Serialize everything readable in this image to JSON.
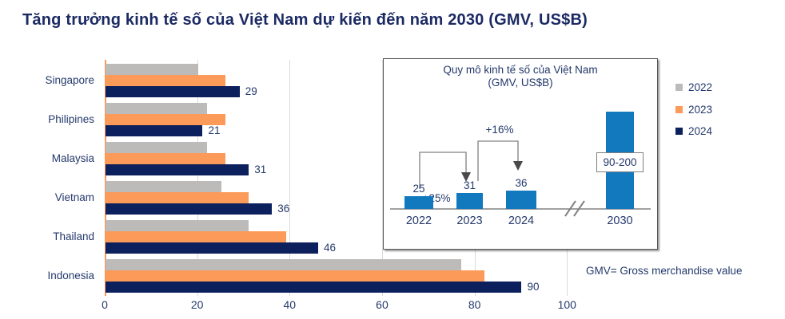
{
  "page_title": "Tăng trưởng kinh tế số của Việt Nam dự kiến đến năm 2030 (GMV, US$B)",
  "note": "GMV= Gross merchandise value",
  "colors": {
    "navy_text": "#24396b",
    "title_navy": "#1b2a63",
    "gray_2022": "#bdbaba",
    "orange_2023": "#fb9a59",
    "navy_2024": "#0b205c",
    "inset_blue": "#1279bf",
    "gridline": "#d9d9d9",
    "axis_orange": "#f89a5b"
  },
  "legend": {
    "items": [
      {
        "label": "2022",
        "color": "#bdbaba"
      },
      {
        "label": "2023",
        "color": "#fb9a59"
      },
      {
        "label": "2024",
        "color": "#0b205c"
      }
    ]
  },
  "chart_data": [
    {
      "type": "bar",
      "orientation": "horizontal",
      "title": "",
      "categories": [
        "Singapore",
        "Philipines",
        "Malaysia",
        "Vietnam",
        "Thailand",
        "Indonesia"
      ],
      "series": [
        {
          "name": "2022",
          "color": "#bdbaba",
          "values": [
            20,
            22,
            22,
            25,
            31,
            77
          ]
        },
        {
          "name": "2023",
          "color": "#fb9a59",
          "values": [
            26,
            26,
            26,
            31,
            39,
            82
          ]
        },
        {
          "name": "2024",
          "color": "#0b205c",
          "values": [
            29,
            21,
            31,
            36,
            46,
            90
          ]
        }
      ],
      "value_labels": [
        "29",
        "21",
        "31",
        "36",
        "46",
        "90"
      ],
      "value_label_series": "2024",
      "x_ticks": [
        0,
        20,
        40,
        60,
        80,
        100
      ],
      "xlim": [
        0,
        100
      ],
      "grid": true,
      "legend_position": "right"
    },
    {
      "type": "bar",
      "orientation": "vertical",
      "title": "Quy mô kinh tế số của Việt Nam",
      "subtitle": "(GMV, US$B)",
      "categories": [
        "2022",
        "2023",
        "2024",
        "2030"
      ],
      "values": [
        25,
        31,
        36,
        null
      ],
      "value_labels": [
        "25",
        "31",
        "36"
      ],
      "projection_label": "90-200",
      "annotations": [
        {
          "label": "+25%",
          "from": "2022",
          "to": "2023"
        },
        {
          "label": "+16%",
          "from": "2023",
          "to": "2024"
        }
      ],
      "axis_break": true,
      "bar_color": "#1279bf"
    }
  ]
}
